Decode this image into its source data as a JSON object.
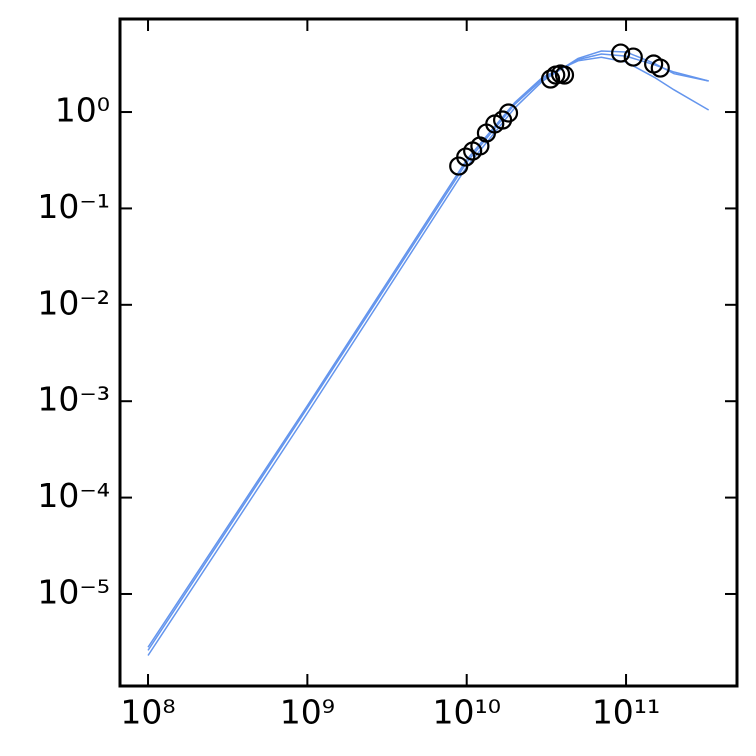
{
  "chart_data": {
    "type": "line",
    "xscale": "log",
    "yscale": "log",
    "xlim": [
      66700000.0,
      497000000000.0
    ],
    "ylim": [
      1.11e-06,
      9.23
    ],
    "xticks": [
      {
        "value": 100000000.0,
        "label": "10⁸"
      },
      {
        "value": 1000000000.0,
        "label": "10⁹"
      },
      {
        "value": 10000000000.0,
        "label": "10¹⁰"
      },
      {
        "value": 100000000000.0,
        "label": "10¹¹"
      }
    ],
    "yticks": [
      {
        "value": 1e-05,
        "label": "10⁻⁵"
      },
      {
        "value": 0.0001,
        "label": "10⁻⁴"
      },
      {
        "value": 0.001,
        "label": "10⁻³"
      },
      {
        "value": 0.01,
        "label": "10⁻²"
      },
      {
        "value": 0.1,
        "label": "10⁻¹"
      },
      {
        "value": 1,
        "label": "10⁰"
      }
    ],
    "series": [
      {
        "color": "#6495ed",
        "x": [
          100000000.0,
          1000000000.0,
          10000000000.0,
          20000000000.0,
          30000000000.0,
          50000000000.0,
          70000000000.0,
          100000000000.0,
          150000000000.0,
          200000000000.0,
          330000000000.0
        ],
        "values": [
          2.6e-06,
          0.00085,
          0.3,
          1.2,
          2.2,
          3.5,
          4.0,
          3.8,
          3.1,
          2.6,
          2.1
        ]
      },
      {
        "color": "#6495ed",
        "x": [
          100000000.0,
          1000000000.0,
          10000000000.0,
          20000000000.0,
          30000000000.0,
          50000000000.0,
          70000000000.0,
          100000000000.0,
          150000000000.0,
          200000000000.0,
          330000000000.0
        ],
        "values": [
          2.3e-06,
          0.00075,
          0.27,
          1.1,
          2.1,
          3.6,
          4.3,
          4.2,
          3.2,
          2.5,
          2.1
        ]
      },
      {
        "color": "#6495ed",
        "x": [
          100000000.0,
          1000000000.0,
          10000000000.0,
          20000000000.0,
          30000000000.0,
          50000000000.0,
          70000000000.0,
          100000000000.0,
          150000000000.0,
          200000000000.0,
          330000000000.0
        ],
        "values": [
          2.8e-06,
          0.0009,
          0.32,
          1.25,
          2.3,
          3.4,
          3.7,
          3.3,
          2.3,
          1.7,
          1.05
        ]
      }
    ],
    "points": {
      "type": "scatter",
      "color": "#000000",
      "x": [
        8910000000.0,
        9860000000.0,
        10900000000.0,
        12100000000.0,
        13300000000.0,
        15000000000.0,
        16800000000.0,
        18300000000.0,
        33600000000.0,
        36200000000.0,
        38800000000.0,
        41100000000.0,
        92500000000.0,
        111000000000.0,
        149000000000.0,
        164000000000.0
      ],
      "values": [
        0.275,
        0.341,
        0.394,
        0.444,
        0.605,
        0.751,
        0.826,
        0.977,
        2.2,
        2.42,
        2.48,
        2.42,
        4.09,
        3.72,
        3.15,
        2.86
      ]
    }
  }
}
